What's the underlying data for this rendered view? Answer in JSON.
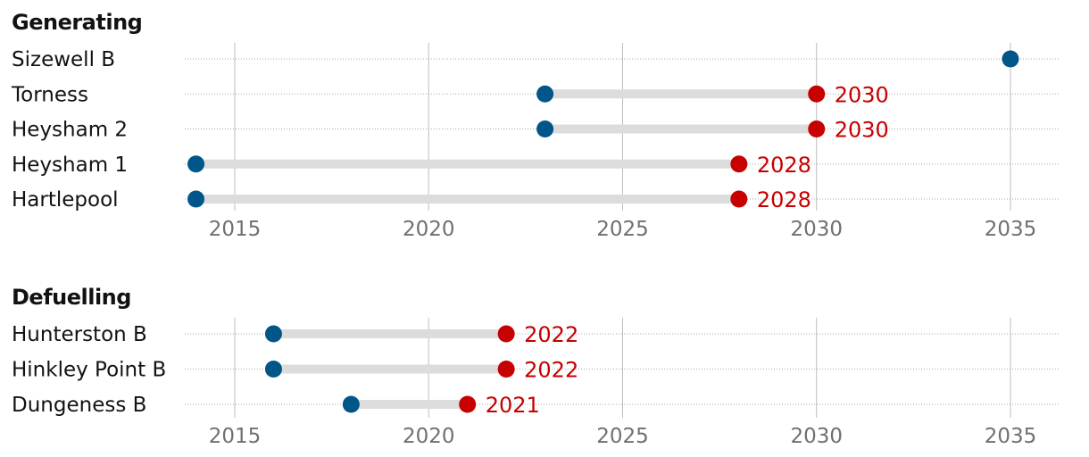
{
  "chart_data": [
    {
      "type": "dumbbell",
      "title": "Generating",
      "xlim": [
        2014,
        2036
      ],
      "xticks": [
        2015,
        2020,
        2025,
        2030,
        2035
      ],
      "rows": [
        {
          "label": "Sizewell B",
          "start": 2035,
          "end": null,
          "end_label": ""
        },
        {
          "label": "Torness",
          "start": 2023,
          "end": 2030,
          "end_label": "2030"
        },
        {
          "label": "Heysham 2",
          "start": 2023,
          "end": 2030,
          "end_label": "2030"
        },
        {
          "label": "Heysham 1",
          "start": 2014,
          "end": 2028,
          "end_label": "2028"
        },
        {
          "label": "Hartlepool",
          "start": 2014,
          "end": 2028,
          "end_label": "2028"
        }
      ]
    },
    {
      "type": "dumbbell",
      "title": "Defuelling",
      "xlim": [
        2014,
        2036
      ],
      "xticks": [
        2015,
        2020,
        2025,
        2030,
        2035
      ],
      "rows": [
        {
          "label": "Hunterston B",
          "start": 2016,
          "end": 2022,
          "end_label": "2022"
        },
        {
          "label": "Hinkley Point B",
          "start": 2016,
          "end": 2022,
          "end_label": "2022"
        },
        {
          "label": "Dungeness B",
          "start": 2018,
          "end": 2021,
          "end_label": "2021"
        }
      ]
    }
  ],
  "colors": {
    "start_dot": "#005689",
    "end_dot": "#c70000",
    "end_label": "#c70000",
    "bar": "#dcdcdc",
    "gridline": "#bdbdbd",
    "row_rule": "#a8a8a8"
  }
}
